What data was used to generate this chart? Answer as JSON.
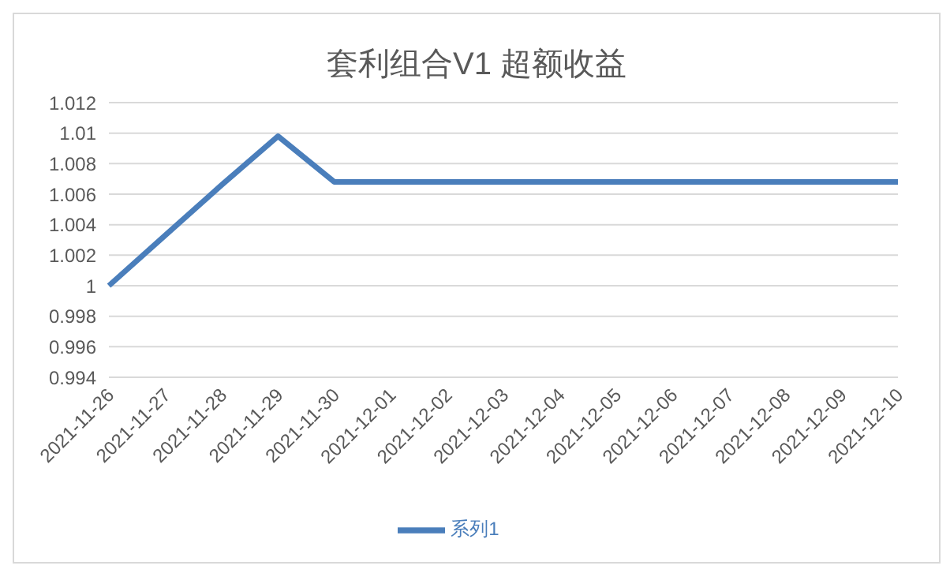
{
  "chart_data": {
    "type": "line",
    "title": "套利组合V1 超额收益",
    "categories": [
      "2021-11-26",
      "2021-11-27",
      "2021-11-28",
      "2021-11-29",
      "2021-11-30",
      "2021-12-01",
      "2021-12-02",
      "2021-12-03",
      "2021-12-04",
      "2021-12-05",
      "2021-12-06",
      "2021-12-07",
      "2021-12-08",
      "2021-12-09",
      "2021-12-10"
    ],
    "series": [
      {
        "name": "系列1",
        "color": "#4a7ebb",
        "values": [
          1,
          1.0033,
          1.0066,
          1.0098,
          1.0068,
          1.0068,
          1.0068,
          1.0068,
          1.0068,
          1.0068,
          1.0068,
          1.0068,
          1.0068,
          1.0068,
          1.0068
        ]
      }
    ],
    "ylim": [
      0.994,
      1.012
    ],
    "yticks": [
      0.994,
      0.996,
      0.998,
      1,
      1.002,
      1.004,
      1.006,
      1.008,
      1.01,
      1.012
    ],
    "grid": "y",
    "legend": "bottom",
    "marker": "none",
    "line_style": "solid"
  }
}
